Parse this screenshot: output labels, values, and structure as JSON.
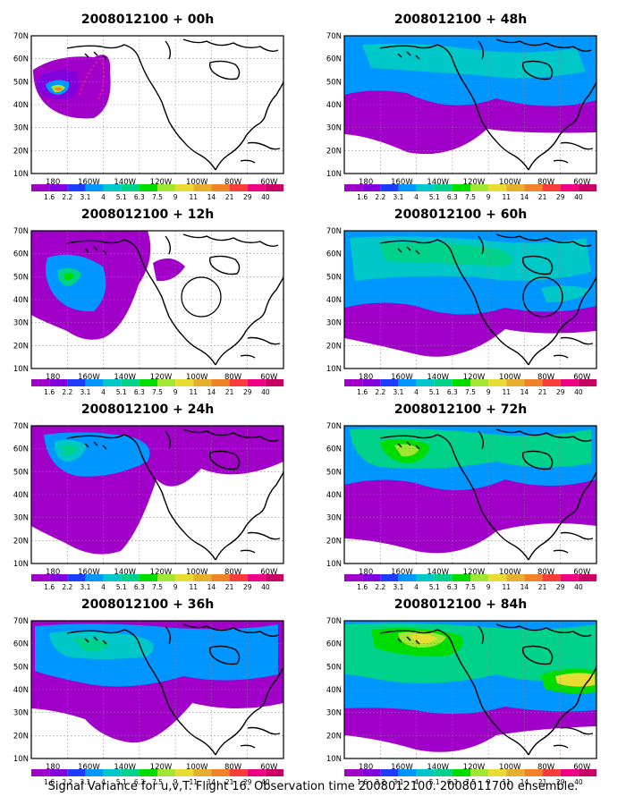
{
  "panels": [
    {
      "title": "2008012100 + 00h",
      "level": 0
    },
    {
      "title": "2008012100 + 48h",
      "level": 4
    },
    {
      "title": "2008012100 + 12h",
      "level": 1
    },
    {
      "title": "2008012100 + 60h",
      "level": 5
    },
    {
      "title": "2008012100 + 24h",
      "level": 2
    },
    {
      "title": "2008012100 + 72h",
      "level": 6
    },
    {
      "title": "2008012100 + 36h",
      "level": 3
    },
    {
      "title": "2008012100 + 84h",
      "level": 7
    }
  ],
  "lat_labels": [
    "70N",
    "60N",
    "50N",
    "40N",
    "30N",
    "20N",
    "10N"
  ],
  "lon_labels": [
    "180",
    "160W",
    "140W",
    "120W",
    "100W",
    "80W",
    "60W"
  ],
  "colorbar": {
    "labels": [
      "1.6",
      "2.2",
      "3.1",
      "4",
      "5.1",
      "6.3",
      "7.5",
      "9",
      "11",
      "14",
      "21",
      "29",
      "40"
    ],
    "colors": [
      "#a000c8",
      "#8200dc",
      "#1e3cff",
      "#0096ff",
      "#00c8c8",
      "#00d28c",
      "#00dc00",
      "#a0e632",
      "#e6dc32",
      "#e6af2d",
      "#f08228",
      "#fa3c3c",
      "#f00082",
      "#c80064"
    ]
  },
  "footer": "Signal Variance for u,v,T. Flight 16. Observation time 2008012100. 2008011700 ensemble."
}
